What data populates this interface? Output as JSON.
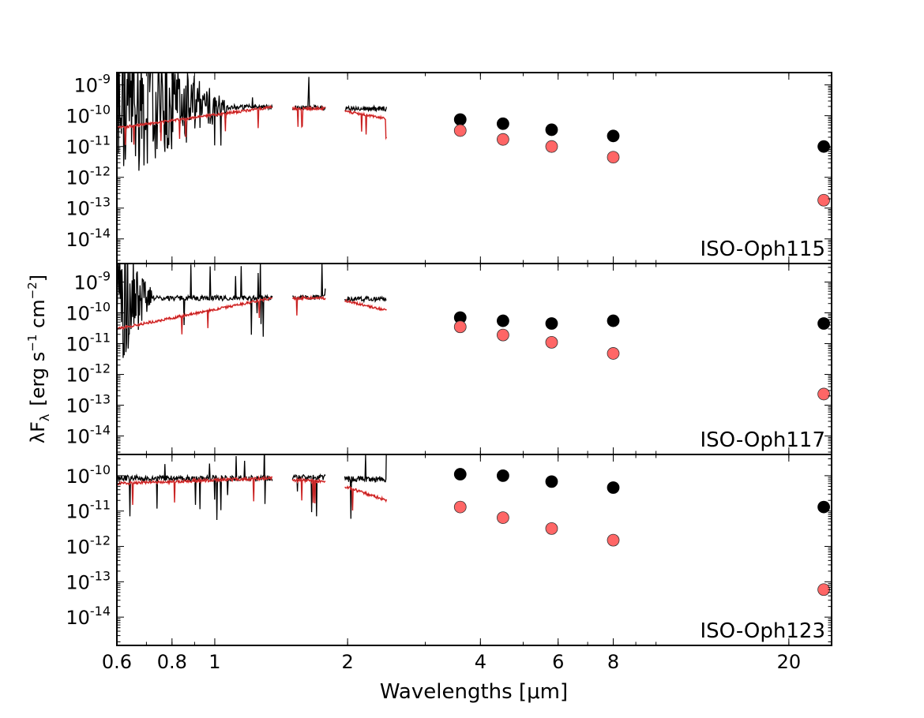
{
  "figure": {
    "xlabel": "Wavelengths [μm]",
    "ylabel_main": "λF",
    "ylabel_sub": "λ",
    "ylabel_rest": "[erg s",
    "ylabel_exp1": "−1",
    "ylabel_mid": " cm",
    "ylabel_exp2": "−2",
    "ylabel_end": "]"
  },
  "colors": {
    "observed": "#000000",
    "model_line": "#a00000",
    "model_light": "#ff6060",
    "model_point": "#ff6666"
  },
  "chart_data": {
    "type": "scatter",
    "xscale": "log",
    "yscale": "log",
    "xlim": [
      0.6,
      25
    ],
    "x_ticks": [
      {
        "v": 0.6,
        "label": "0.6"
      },
      {
        "v": 0.8,
        "label": "0.8"
      },
      {
        "v": 1,
        "label": "1"
      },
      {
        "v": 2,
        "label": "2"
      },
      {
        "v": 4,
        "label": "4"
      },
      {
        "v": 6,
        "label": "6"
      },
      {
        "v": 8,
        "label": "8"
      },
      {
        "v": 20,
        "label": "20"
      }
    ],
    "panels": [
      {
        "name": "ISO-Oph115",
        "ylim": [
          -14.8,
          -8.6
        ],
        "y_ticks": [
          {
            "e": -9,
            "label": "10",
            "exp": "-9"
          },
          {
            "e": -10,
            "label": "10",
            "exp": "-10"
          },
          {
            "e": -11,
            "label": "10",
            "exp": "-11"
          },
          {
            "e": -12,
            "label": "10",
            "exp": "-12"
          },
          {
            "e": -13,
            "label": "10",
            "exp": "-13"
          },
          {
            "e": -14,
            "label": "10",
            "exp": "-14"
          }
        ],
        "photometry_observed": [
          [
            3.6,
            7.5e-11
          ],
          [
            4.5,
            5.5e-11
          ],
          [
            5.8,
            3.5e-11
          ],
          [
            8.0,
            2.2e-11
          ],
          [
            24.0,
            1e-11
          ]
        ],
        "photometry_model": [
          [
            3.6,
            3.3e-11
          ],
          [
            4.5,
            1.7e-11
          ],
          [
            5.8,
            1e-11
          ],
          [
            8.0,
            4.5e-12
          ],
          [
            24.0,
            1.8e-13
          ]
        ],
        "spectrum_segments": [
          {
            "x_range": [
              0.6,
              1.35
            ],
            "observed_level": 1.9e-10,
            "model_start": 4e-11,
            "model_end": 1.9e-10,
            "noise_until": 1.06
          },
          {
            "x_range": [
              1.5,
              1.78
            ],
            "observed_level": 1.8e-10,
            "model_start": 1.7e-10,
            "model_end": 1.7e-10
          },
          {
            "x_range": [
              1.97,
              2.45
            ],
            "observed_level": 1.7e-10,
            "model_start": 1.4e-10,
            "model_end": 8e-11
          }
        ]
      },
      {
        "name": "ISO-Oph117",
        "ylim": [
          -14.6,
          -8.4
        ],
        "y_ticks": [
          {
            "e": -9,
            "label": "10",
            "exp": "-9"
          },
          {
            "e": -10,
            "label": "10",
            "exp": "-10"
          },
          {
            "e": -11,
            "label": "10",
            "exp": "-11"
          },
          {
            "e": -12,
            "label": "10",
            "exp": "-12"
          },
          {
            "e": -13,
            "label": "10",
            "exp": "-13"
          },
          {
            "e": -14,
            "label": "10",
            "exp": "-14"
          }
        ],
        "photometry_observed": [
          [
            3.6,
            7e-11
          ],
          [
            4.5,
            5.5e-11
          ],
          [
            5.8,
            4.5e-11
          ],
          [
            8.0,
            5.5e-11
          ],
          [
            24.0,
            4.5e-11
          ]
        ],
        "photometry_model": [
          [
            3.6,
            3.5e-11
          ],
          [
            4.5,
            1.9e-11
          ],
          [
            5.8,
            1.1e-11
          ],
          [
            8.0,
            4.8e-12
          ],
          [
            24.0,
            2.3e-13
          ]
        ],
        "spectrum_segments": [
          {
            "x_range": [
              0.6,
              1.35
            ],
            "observed_level": 3e-10,
            "model_start": 3e-11,
            "model_end": 3e-10,
            "noise_until": 0.72
          },
          {
            "x_range": [
              1.5,
              1.78
            ],
            "observed_level": 3.2e-10,
            "model_start": 3e-10,
            "model_end": 3e-10
          },
          {
            "x_range": [
              1.97,
              2.45
            ],
            "observed_level": 2.8e-10,
            "model_start": 2.5e-10,
            "model_end": 1.2e-10
          }
        ]
      },
      {
        "name": "ISO-Oph123",
        "ylim": [
          -14.8,
          -9.4
        ],
        "y_ticks": [
          {
            "e": -10,
            "label": "10",
            "exp": "-10"
          },
          {
            "e": -11,
            "label": "10",
            "exp": "-11"
          },
          {
            "e": -12,
            "label": "10",
            "exp": "-12"
          },
          {
            "e": -13,
            "label": "10",
            "exp": "-13"
          },
          {
            "e": -14,
            "label": "10",
            "exp": "-14"
          }
        ],
        "photometry_observed": [
          [
            3.6,
            1.1e-10
          ],
          [
            4.5,
            1e-10
          ],
          [
            5.8,
            6.8e-11
          ],
          [
            8.0,
            4.6e-11
          ],
          [
            24.0,
            1.3e-11
          ]
        ],
        "photometry_model": [
          [
            3.6,
            1.3e-11
          ],
          [
            4.5,
            6.5e-12
          ],
          [
            5.8,
            3.2e-12
          ],
          [
            8.0,
            1.5e-12
          ],
          [
            24.0,
            6e-14
          ]
        ],
        "spectrum_segments": [
          {
            "x_range": [
              0.6,
              1.35
            ],
            "observed_level": 8.5e-11,
            "model_start": 6e-11,
            "model_end": 8.5e-11
          },
          {
            "x_range": [
              1.5,
              1.78
            ],
            "observed_level": 9e-11,
            "model_start": 7.5e-11,
            "model_end": 7e-11
          },
          {
            "x_range": [
              1.97,
              2.45
            ],
            "observed_level": 8e-11,
            "model_start": 5e-11,
            "model_end": 2e-11
          }
        ]
      }
    ]
  }
}
